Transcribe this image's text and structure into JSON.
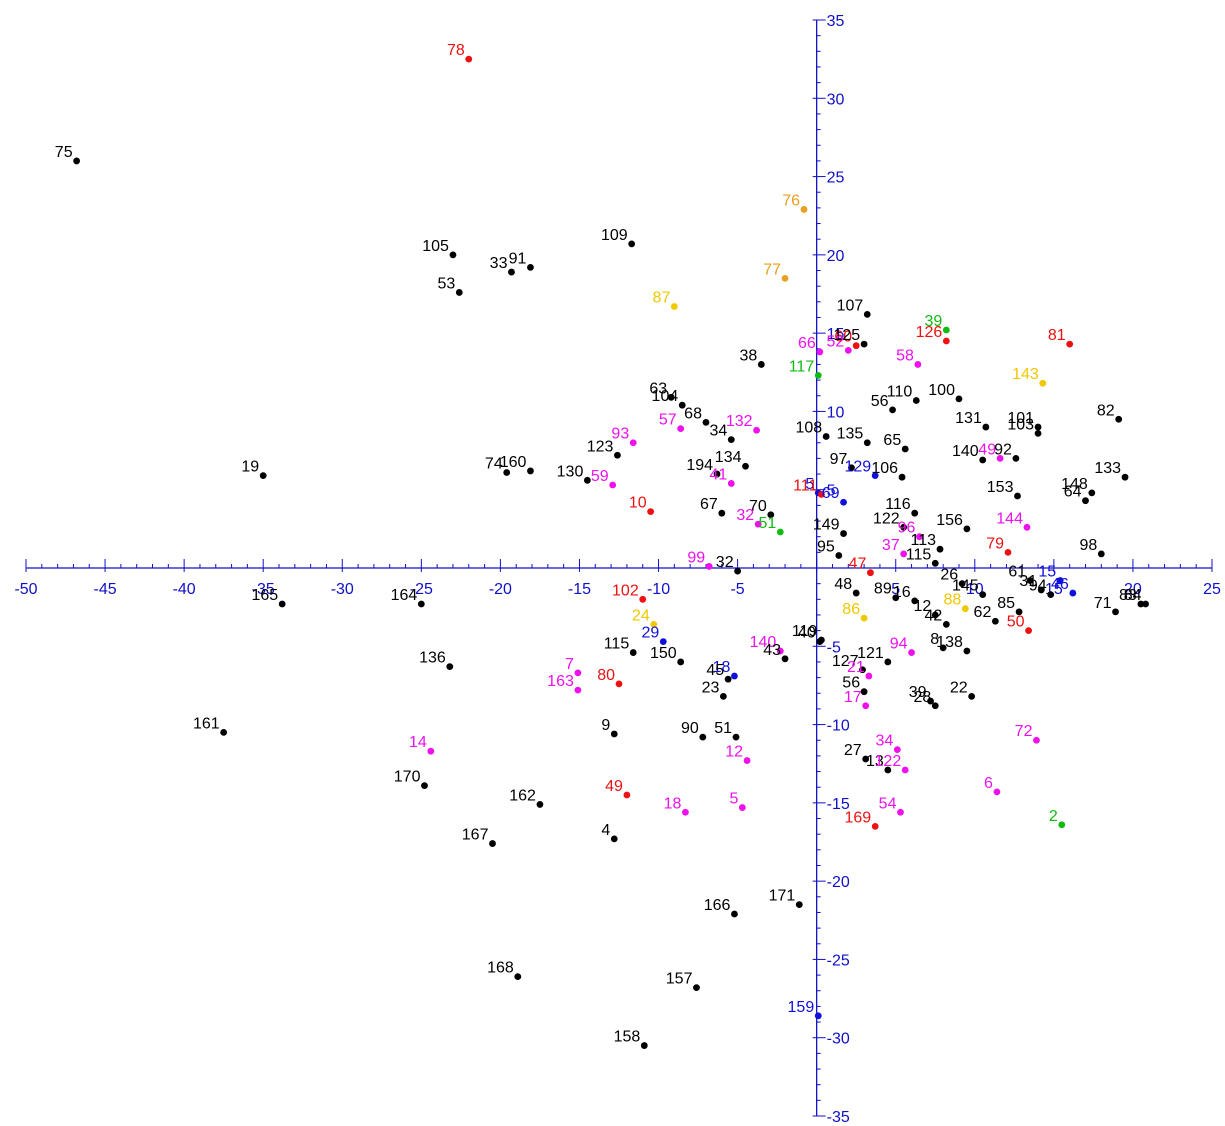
{
  "chart_data": {
    "type": "scatter",
    "title": "",
    "xlabel": "",
    "ylabel": "",
    "xlim": [
      -50,
      25
    ],
    "ylim": [
      -35,
      35
    ],
    "x_ticks": [
      -50,
      -45,
      -40,
      -35,
      -30,
      -25,
      -20,
      -15,
      -10,
      -5,
      5,
      10,
      15,
      20,
      25
    ],
    "y_ticks": [
      35,
      30,
      25,
      20,
      15,
      10,
      5,
      -5,
      -10,
      -15,
      -20,
      -25,
      -30,
      -35
    ],
    "x_tick_labels": [
      "-50",
      "-45",
      "-40",
      "-35",
      "-30",
      "-25",
      "-20",
      "-15",
      "-10",
      "-5",
      "5",
      "10",
      "15",
      "20",
      "25"
    ],
    "y_tick_labels": [
      "35",
      "30",
      "25",
      "20",
      "15",
      "10",
      "5",
      "-5",
      "-10",
      "-15",
      "-20",
      "-25",
      "-30",
      "-35"
    ],
    "grid": false,
    "legend": "none",
    "colors": {
      "axis": "#1010c8",
      "black": "#000000",
      "red": "#ee1111",
      "magenta": "#ee11ee",
      "orange": "#e8a020",
      "yellow": "#f0c800",
      "blue": "#1010dd",
      "green": "#11bb11"
    },
    "points": [
      {
        "label": "75",
        "x": -46.8,
        "y": 26.0,
        "color": "black"
      },
      {
        "label": "78",
        "x": -22.0,
        "y": 32.5,
        "color": "red"
      },
      {
        "label": "105",
        "x": -23.0,
        "y": 20.0,
        "color": "black"
      },
      {
        "label": "33",
        "x": -19.3,
        "y": 18.9,
        "color": "black"
      },
      {
        "label": "91",
        "x": -18.1,
        "y": 19.2,
        "color": "black"
      },
      {
        "label": "53",
        "x": -22.6,
        "y": 17.6,
        "color": "black"
      },
      {
        "label": "109",
        "x": -11.7,
        "y": 20.7,
        "color": "black"
      },
      {
        "label": "76",
        "x": -0.8,
        "y": 22.9,
        "color": "orange"
      },
      {
        "label": "77",
        "x": -2.0,
        "y": 18.5,
        "color": "orange"
      },
      {
        "label": "87",
        "x": -9.0,
        "y": 16.7,
        "color": "yellow"
      },
      {
        "label": "19",
        "x": -35.0,
        "y": 5.9,
        "color": "black"
      },
      {
        "label": "74",
        "x": -19.6,
        "y": 6.1,
        "color": "black"
      },
      {
        "label": "160",
        "x": -18.1,
        "y": 6.2,
        "color": "black"
      },
      {
        "label": "130",
        "x": -14.5,
        "y": 5.6,
        "color": "black"
      },
      {
        "label": "63",
        "x": -9.2,
        "y": 10.9,
        "color": "black"
      },
      {
        "label": "104",
        "x": -8.5,
        "y": 10.4,
        "color": "black"
      },
      {
        "label": "57",
        "x": -8.6,
        "y": 8.9,
        "color": "magenta"
      },
      {
        "label": "68",
        "x": -7.0,
        "y": 9.3,
        "color": "black"
      },
      {
        "label": "132",
        "x": -3.8,
        "y": 8.8,
        "color": "magenta"
      },
      {
        "label": "38",
        "x": -3.5,
        "y": 13.0,
        "color": "black"
      },
      {
        "label": "123",
        "x": -12.6,
        "y": 7.2,
        "color": "black"
      },
      {
        "label": "93",
        "x": -11.6,
        "y": 8.0,
        "color": "magenta"
      },
      {
        "label": "59",
        "x": -12.9,
        "y": 5.3,
        "color": "magenta"
      },
      {
        "label": "34",
        "x": -5.4,
        "y": 8.2,
        "color": "black"
      },
      {
        "label": "134",
        "x": -4.5,
        "y": 6.5,
        "color": "black"
      },
      {
        "label": "194",
        "x": -6.3,
        "y": 6.0,
        "color": "black"
      },
      {
        "label": "41",
        "x": -5.4,
        "y": 5.4,
        "color": "magenta"
      },
      {
        "label": "67",
        "x": -6.0,
        "y": 3.5,
        "color": "black"
      },
      {
        "label": "10",
        "x": -10.5,
        "y": 3.6,
        "color": "red"
      },
      {
        "label": "70",
        "x": -2.9,
        "y": 3.4,
        "color": "black"
      },
      {
        "label": "32",
        "x": -3.7,
        "y": 2.8,
        "color": "magenta"
      },
      {
        "label": "51",
        "x": -2.3,
        "y": 2.3,
        "color": "green"
      },
      {
        "label": "99",
        "x": -6.8,
        "y": 0.1,
        "color": "magenta"
      },
      {
        "label": "32",
        "x": -5.0,
        "y": -0.2,
        "color": "black"
      },
      {
        "label": "107",
        "x": 3.2,
        "y": 16.2,
        "color": "black"
      },
      {
        "label": "60",
        "x": 2.5,
        "y": 14.2,
        "color": "red"
      },
      {
        "label": "125",
        "x": 3.0,
        "y": 14.3,
        "color": "black"
      },
      {
        "label": "66",
        "x": 0.2,
        "y": 13.8,
        "color": "magenta"
      },
      {
        "label": "52",
        "x": 2.0,
        "y": 13.9,
        "color": "magenta"
      },
      {
        "label": "117",
        "x": 0.1,
        "y": 12.3,
        "color": "green"
      },
      {
        "label": "39",
        "x": 8.2,
        "y": 15.2,
        "color": "green"
      },
      {
        "label": "126",
        "x": 8.2,
        "y": 14.5,
        "color": "red"
      },
      {
        "label": "58",
        "x": 6.4,
        "y": 13.0,
        "color": "magenta"
      },
      {
        "label": "81",
        "x": 16.0,
        "y": 14.3,
        "color": "red"
      },
      {
        "label": "143",
        "x": 14.3,
        "y": 11.8,
        "color": "yellow"
      },
      {
        "label": "56",
        "x": 4.8,
        "y": 10.1,
        "color": "black"
      },
      {
        "label": "110",
        "x": 6.3,
        "y": 10.7,
        "color": "black"
      },
      {
        "label": "100",
        "x": 9.0,
        "y": 10.8,
        "color": "black"
      },
      {
        "label": "108",
        "x": 0.6,
        "y": 8.4,
        "color": "black"
      },
      {
        "label": "135",
        "x": 3.2,
        "y": 8.0,
        "color": "black"
      },
      {
        "label": "65",
        "x": 5.6,
        "y": 7.6,
        "color": "black"
      },
      {
        "label": "131",
        "x": 10.7,
        "y": 9.0,
        "color": "black"
      },
      {
        "label": "101",
        "x": 14.0,
        "y": 9.0,
        "color": "black"
      },
      {
        "label": "103",
        "x": 14.0,
        "y": 8.6,
        "color": "black"
      },
      {
        "label": "82",
        "x": 19.1,
        "y": 9.5,
        "color": "black"
      },
      {
        "label": "97",
        "x": 2.2,
        "y": 6.4,
        "color": "black"
      },
      {
        "label": "129",
        "x": 3.7,
        "y": 5.9,
        "color": "blue"
      },
      {
        "label": "106",
        "x": 5.4,
        "y": 5.8,
        "color": "black"
      },
      {
        "label": "140",
        "x": 10.5,
        "y": 6.9,
        "color": "black"
      },
      {
        "label": "49",
        "x": 11.6,
        "y": 7.0,
        "color": "magenta"
      },
      {
        "label": "92",
        "x": 12.6,
        "y": 7.0,
        "color": "black"
      },
      {
        "label": "133",
        "x": 19.5,
        "y": 5.8,
        "color": "black"
      },
      {
        "label": "148",
        "x": 17.4,
        "y": 4.8,
        "color": "black"
      },
      {
        "label": "64",
        "x": 17.0,
        "y": 4.3,
        "color": "black"
      },
      {
        "label": "153",
        "x": 12.7,
        "y": 4.6,
        "color": "black"
      },
      {
        "label": "5",
        "x": 0.1,
        "y": 4.8,
        "color": "blue"
      },
      {
        "label": "111",
        "x": 0.3,
        "y": 4.7,
        "color": "red"
      },
      {
        "label": "69",
        "x": 1.7,
        "y": 4.2,
        "color": "blue"
      },
      {
        "label": "116",
        "x": 6.2,
        "y": 3.5,
        "color": "black"
      },
      {
        "label": "149",
        "x": 1.7,
        "y": 2.2,
        "color": "black"
      },
      {
        "label": "122",
        "x": 5.5,
        "y": 2.6,
        "color": "black"
      },
      {
        "label": "156",
        "x": 9.5,
        "y": 2.5,
        "color": "black"
      },
      {
        "label": "144",
        "x": 13.3,
        "y": 2.6,
        "color": "magenta"
      },
      {
        "label": "96",
        "x": 6.5,
        "y": 2.0,
        "color": "magenta"
      },
      {
        "label": "113",
        "x": 7.8,
        "y": 1.2,
        "color": "black"
      },
      {
        "label": "79",
        "x": 12.1,
        "y": 1.0,
        "color": "red"
      },
      {
        "label": "98",
        "x": 18.0,
        "y": 0.9,
        "color": "black"
      },
      {
        "label": "95",
        "x": 1.4,
        "y": 0.8,
        "color": "black"
      },
      {
        "label": "37",
        "x": 5.5,
        "y": 0.9,
        "color": "magenta"
      },
      {
        "label": "115",
        "x": 7.5,
        "y": 0.3,
        "color": "black"
      },
      {
        "label": "47",
        "x": 3.4,
        "y": -0.3,
        "color": "red"
      },
      {
        "label": "48",
        "x": 2.5,
        "y": -1.6,
        "color": "black"
      },
      {
        "label": "89",
        "x": 5.0,
        "y": -1.9,
        "color": "black"
      },
      {
        "label": "16",
        "x": 6.2,
        "y": -2.1,
        "color": "black"
      },
      {
        "label": "26",
        "x": 9.2,
        "y": -1.0,
        "color": "black"
      },
      {
        "label": "145",
        "x": 10.5,
        "y": -1.7,
        "color": "black"
      },
      {
        "label": "61",
        "x": 13.5,
        "y": -0.8,
        "color": "black"
      },
      {
        "label": "15",
        "x": 15.4,
        "y": -0.8,
        "color": "blue"
      },
      {
        "label": "46",
        "x": 16.2,
        "y": -1.6,
        "color": "blue"
      },
      {
        "label": "31",
        "x": 14.2,
        "y": -1.4,
        "color": "black"
      },
      {
        "label": "94",
        "x": 14.8,
        "y": -1.7,
        "color": "black"
      },
      {
        "label": "71",
        "x": 18.9,
        "y": -2.8,
        "color": "black"
      },
      {
        "label": "83",
        "x": 20.5,
        "y": -2.3,
        "color": "black"
      },
      {
        "label": "84",
        "x": 20.8,
        "y": -2.3,
        "color": "black"
      },
      {
        "label": "88",
        "x": 9.4,
        "y": -2.6,
        "color": "yellow"
      },
      {
        "label": "62",
        "x": 11.3,
        "y": -3.4,
        "color": "black"
      },
      {
        "label": "85",
        "x": 12.8,
        "y": -2.8,
        "color": "black"
      },
      {
        "label": "50",
        "x": 13.4,
        "y": -4.0,
        "color": "red"
      },
      {
        "label": "12",
        "x": 7.5,
        "y": -3.0,
        "color": "black"
      },
      {
        "label": "42",
        "x": 8.2,
        "y": -3.6,
        "color": "black"
      },
      {
        "label": "86",
        "x": 3.0,
        "y": -3.2,
        "color": "yellow"
      },
      {
        "label": "8",
        "x": 8.0,
        "y": -5.1,
        "color": "black"
      },
      {
        "label": "138",
        "x": 9.5,
        "y": -5.3,
        "color": "black"
      },
      {
        "label": "94",
        "x": 6.0,
        "y": -5.4,
        "color": "magenta"
      },
      {
        "label": "119",
        "x": 0.3,
        "y": -4.6,
        "color": "black"
      },
      {
        "label": "121",
        "x": 4.5,
        "y": -6.0,
        "color": "black"
      },
      {
        "label": "127",
        "x": 2.9,
        "y": -6.5,
        "color": "black"
      },
      {
        "label": "21",
        "x": 3.3,
        "y": -6.9,
        "color": "magenta"
      },
      {
        "label": "56",
        "x": 3.0,
        "y": -7.9,
        "color": "black"
      },
      {
        "label": "17",
        "x": 3.1,
        "y": -8.8,
        "color": "magenta"
      },
      {
        "label": "39",
        "x": 7.2,
        "y": -8.5,
        "color": "black"
      },
      {
        "label": "28",
        "x": 7.5,
        "y": -8.8,
        "color": "black"
      },
      {
        "label": "22",
        "x": 9.8,
        "y": -8.2,
        "color": "black"
      },
      {
        "label": "72",
        "x": 13.9,
        "y": -11.0,
        "color": "magenta"
      },
      {
        "label": "27",
        "x": 3.1,
        "y": -12.2,
        "color": "black"
      },
      {
        "label": "34",
        "x": 5.1,
        "y": -11.6,
        "color": "magenta"
      },
      {
        "label": "13",
        "x": 4.5,
        "y": -12.9,
        "color": "black"
      },
      {
        "label": "122",
        "x": 5.6,
        "y": -12.9,
        "color": "magenta"
      },
      {
        "label": "6",
        "x": 11.4,
        "y": -14.3,
        "color": "magenta"
      },
      {
        "label": "54",
        "x": 5.3,
        "y": -15.6,
        "color": "magenta"
      },
      {
        "label": "169",
        "x": 3.7,
        "y": -16.5,
        "color": "red"
      },
      {
        "label": "2",
        "x": 15.5,
        "y": -16.4,
        "color": "green"
      },
      {
        "label": "165",
        "x": -33.8,
        "y": -2.3,
        "color": "black"
      },
      {
        "label": "164",
        "x": -25.0,
        "y": -2.3,
        "color": "black"
      },
      {
        "label": "102",
        "x": -11.0,
        "y": -2.0,
        "color": "red"
      },
      {
        "label": "24",
        "x": -10.3,
        "y": -3.6,
        "color": "yellow"
      },
      {
        "label": "29",
        "x": -9.7,
        "y": -4.7,
        "color": "blue"
      },
      {
        "label": "115",
        "x": -11.6,
        "y": -5.4,
        "color": "black"
      },
      {
        "label": "150",
        "x": -8.6,
        "y": -6.0,
        "color": "black"
      },
      {
        "label": "140",
        "x": -2.3,
        "y": -5.3,
        "color": "magenta"
      },
      {
        "label": "40",
        "x": 0.2,
        "y": -4.7,
        "color": "black"
      },
      {
        "label": "43",
        "x": -2.0,
        "y": -5.8,
        "color": "black"
      },
      {
        "label": "136",
        "x": -23.2,
        "y": -6.3,
        "color": "black"
      },
      {
        "label": "7",
        "x": -15.1,
        "y": -6.7,
        "color": "magenta"
      },
      {
        "label": "163",
        "x": -15.1,
        "y": -7.8,
        "color": "magenta"
      },
      {
        "label": "80",
        "x": -12.5,
        "y": -7.4,
        "color": "red"
      },
      {
        "label": "18",
        "x": -5.2,
        "y": -6.9,
        "color": "blue"
      },
      {
        "label": "45",
        "x": -5.6,
        "y": -7.1,
        "color": "black"
      },
      {
        "label": "23",
        "x": -5.9,
        "y": -8.2,
        "color": "black"
      },
      {
        "label": "161",
        "x": -37.5,
        "y": -10.5,
        "color": "black"
      },
      {
        "label": "9",
        "x": -12.8,
        "y": -10.6,
        "color": "black"
      },
      {
        "label": "90",
        "x": -7.2,
        "y": -10.8,
        "color": "black"
      },
      {
        "label": "51",
        "x": -5.1,
        "y": -10.8,
        "color": "black"
      },
      {
        "label": "14",
        "x": -24.4,
        "y": -11.7,
        "color": "magenta"
      },
      {
        "label": "12",
        "x": -4.4,
        "y": -12.3,
        "color": "magenta"
      },
      {
        "label": "170",
        "x": -24.8,
        "y": -13.9,
        "color": "black"
      },
      {
        "label": "162",
        "x": -17.5,
        "y": -15.1,
        "color": "black"
      },
      {
        "label": "49",
        "x": -12.0,
        "y": -14.5,
        "color": "red"
      },
      {
        "label": "18",
        "x": -8.3,
        "y": -15.6,
        "color": "magenta"
      },
      {
        "label": "5",
        "x": -4.7,
        "y": -15.3,
        "color": "magenta"
      },
      {
        "label": "167",
        "x": -20.5,
        "y": -17.6,
        "color": "black"
      },
      {
        "label": "4",
        "x": -12.8,
        "y": -17.3,
        "color": "black"
      },
      {
        "label": "171",
        "x": -1.1,
        "y": -21.5,
        "color": "black"
      },
      {
        "label": "166",
        "x": -5.2,
        "y": -22.1,
        "color": "black"
      },
      {
        "label": "168",
        "x": -18.9,
        "y": -26.1,
        "color": "black"
      },
      {
        "label": "157",
        "x": -7.6,
        "y": -26.8,
        "color": "black"
      },
      {
        "label": "159",
        "x": 0.1,
        "y": -28.6,
        "color": "blue"
      },
      {
        "label": "158",
        "x": -10.9,
        "y": -30.5,
        "color": "black"
      }
    ]
  }
}
